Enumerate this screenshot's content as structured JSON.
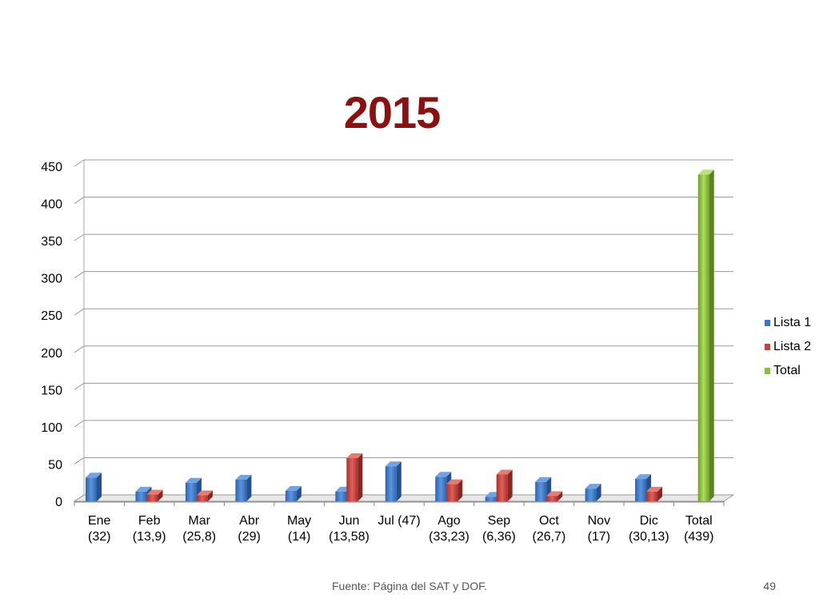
{
  "slide": {
    "footer": "Fuente: Página del SAT y DOF.",
    "page_number": "49"
  },
  "chart_data": {
    "type": "bar",
    "title": "2015",
    "xlabel": "",
    "ylabel": "",
    "ylim": [
      0,
      450
    ],
    "yticks": [
      "0",
      "50",
      "100",
      "150",
      "200",
      "250",
      "300",
      "350",
      "400",
      "450"
    ],
    "grid": true,
    "legend_position": "right",
    "categories": [
      [
        "Ene",
        "(32)"
      ],
      [
        "Feb",
        "(13,9)"
      ],
      [
        "Mar",
        "(25,8)"
      ],
      [
        "Abr",
        "(29)"
      ],
      [
        "May",
        "(14)"
      ],
      [
        "Jun",
        "(13,58)"
      ],
      [
        "Jul (47)",
        ""
      ],
      [
        "Ago",
        "(33,23)"
      ],
      [
        "Sep",
        "(6,36)"
      ],
      [
        "Oct",
        "(26,7)"
      ],
      [
        "Nov",
        "(17)"
      ],
      [
        "Dic",
        "(30,13)"
      ],
      [
        "Total",
        "(439)"
      ]
    ],
    "series": [
      {
        "name": "Lista 1",
        "color": "#3b78c8",
        "values": [
          32,
          13,
          25,
          29,
          14,
          13,
          47,
          33,
          6,
          26,
          17,
          30,
          0
        ]
      },
      {
        "name": "Lista 2",
        "color": "#c8403a",
        "values": [
          0,
          9,
          8,
          0,
          0,
          58,
          0,
          23,
          36,
          7,
          0,
          13,
          0
        ]
      },
      {
        "name": "Total",
        "color": "#8cbf3f",
        "values": [
          0,
          0,
          0,
          0,
          0,
          0,
          0,
          0,
          0,
          0,
          0,
          0,
          439
        ]
      }
    ]
  }
}
